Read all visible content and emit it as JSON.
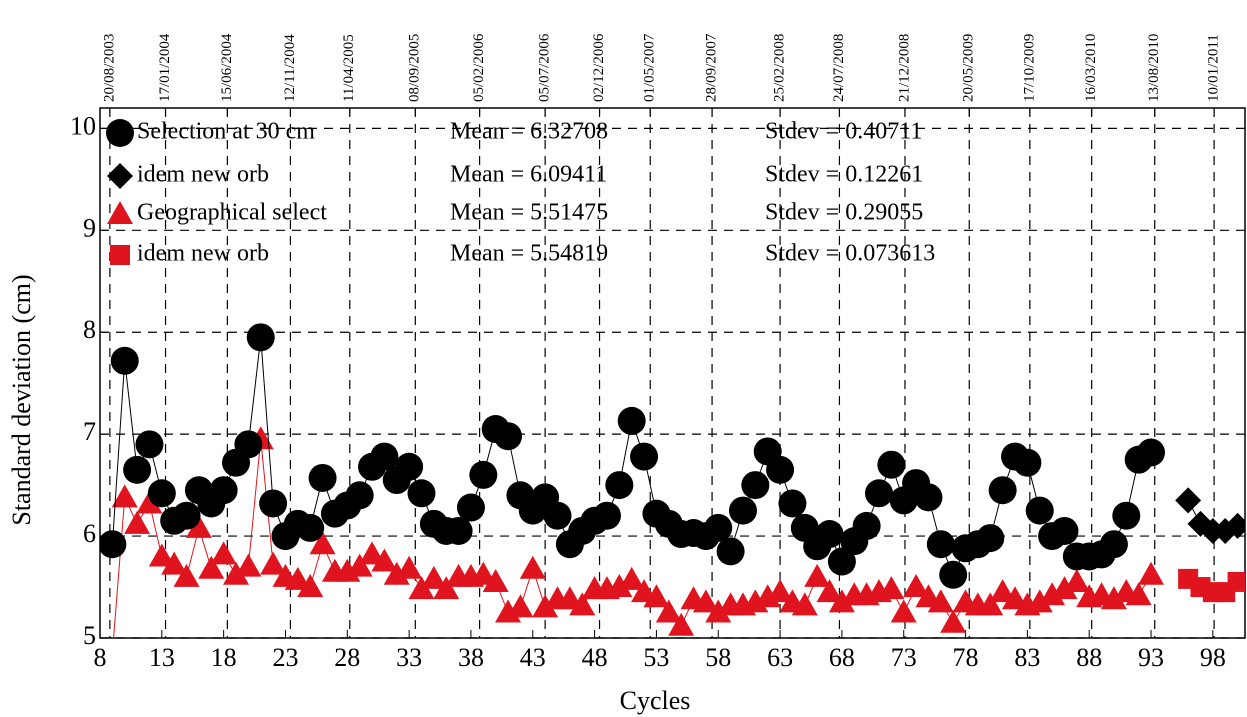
{
  "chart_data": {
    "type": "scatter",
    "xlabel": "Cycles",
    "ylabel": "Standard deviation (cm)",
    "xlim": [
      8,
      100.6
    ],
    "ylim": [
      5,
      10.2
    ],
    "xticks": [
      8,
      13,
      18,
      23,
      28,
      33,
      38,
      43,
      48,
      53,
      58,
      63,
      68,
      73,
      78,
      83,
      88,
      93,
      98
    ],
    "yticks": [
      5,
      6,
      7,
      8,
      9,
      10
    ],
    "x2ticks": [
      {
        "value": 8.8,
        "label": "20/08/2003"
      },
      {
        "value": 13.3,
        "label": "17/01/2004"
      },
      {
        "value": 18.3,
        "label": "15/06/2004"
      },
      {
        "value": 23.4,
        "label": "12/11/2004"
      },
      {
        "value": 28.2,
        "label": "11/04/2005"
      },
      {
        "value": 33.5,
        "label": "08/09/2005"
      },
      {
        "value": 38.7,
        "label": "05/02/2006"
      },
      {
        "value": 44.0,
        "label": "05/07/2006"
      },
      {
        "value": 48.4,
        "label": "02/12/2006"
      },
      {
        "value": 52.5,
        "label": "01/05/2007"
      },
      {
        "value": 57.5,
        "label": "28/09/2007"
      },
      {
        "value": 63.0,
        "label": "25/02/2008"
      },
      {
        "value": 67.8,
        "label": "24/07/2008"
      },
      {
        "value": 73.1,
        "label": "21/12/2008"
      },
      {
        "value": 78.3,
        "label": "20/05/2009"
      },
      {
        "value": 83.2,
        "label": "17/10/2009"
      },
      {
        "value": 88.2,
        "label": "16/03/2010"
      },
      {
        "value": 93.3,
        "label": "13/08/2010"
      },
      {
        "value": 98.1,
        "label": "10/01/2011"
      }
    ],
    "grid": true,
    "series": [
      {
        "name": "Selection at 30 cm",
        "color": "#000000",
        "marker": "circle",
        "stats": [
          "Mean = 6.32708",
          "Stdev = 0.40711"
        ],
        "x": [
          9,
          10,
          11,
          12,
          13,
          14,
          15,
          16,
          17,
          18,
          19,
          20,
          21,
          22,
          23,
          24,
          25,
          26,
          27,
          28,
          29,
          30,
          31,
          32,
          33,
          34,
          35,
          36,
          37,
          38,
          39,
          40,
          41,
          42,
          43,
          44,
          45,
          46,
          47,
          48,
          49,
          50,
          51,
          52,
          53,
          54,
          55,
          56,
          57,
          58,
          59,
          60,
          61,
          62,
          63,
          64,
          65,
          66,
          67,
          68,
          69,
          70,
          71,
          72,
          73,
          74,
          75,
          76,
          77,
          78,
          79,
          80,
          81,
          82,
          83,
          84,
          85,
          86,
          87,
          88,
          89,
          90,
          91,
          92,
          93
        ],
        "values": [
          5.92,
          7.72,
          6.65,
          6.9,
          6.42,
          6.15,
          6.2,
          6.45,
          6.32,
          6.45,
          6.72,
          6.9,
          7.95,
          6.32,
          6.0,
          6.12,
          6.08,
          6.57,
          6.22,
          6.3,
          6.4,
          6.68,
          6.78,
          6.55,
          6.68,
          6.42,
          6.12,
          6.05,
          6.05,
          6.28,
          6.6,
          7.05,
          6.98,
          6.4,
          6.25,
          6.38,
          6.2,
          5.92,
          6.05,
          6.15,
          6.2,
          6.5,
          7.13,
          6.78,
          6.22,
          6.12,
          6.02,
          6.03,
          6.0,
          6.08,
          5.85,
          6.25,
          6.5,
          6.83,
          6.65,
          6.32,
          6.08,
          5.9,
          6.02,
          5.75,
          5.95,
          6.1,
          6.42,
          6.7,
          6.35,
          6.52,
          6.38,
          5.92,
          5.62,
          5.88,
          5.92,
          5.98,
          6.45,
          6.78,
          6.72,
          6.25,
          6.0,
          6.05,
          5.8,
          5.8,
          5.82,
          5.92,
          6.2,
          6.75,
          6.82
        ]
      },
      {
        "name": "idem new orb",
        "color": "#000000",
        "marker": "diamond",
        "stats": [
          "Mean = 6.09411",
          "Stdev = 0.12261"
        ],
        "x": [
          96,
          97,
          98,
          99,
          100
        ],
        "values": [
          6.35,
          6.12,
          6.05,
          6.05,
          6.1
        ]
      },
      {
        "name": "Geographical select",
        "color": "#e0141e",
        "marker": "triangle",
        "stats": [
          "Mean = 5.51475",
          "Stdev = 0.29055"
        ],
        "x": [
          9,
          10,
          11,
          12,
          13,
          14,
          15,
          16,
          17,
          18,
          19,
          20,
          21,
          22,
          23,
          24,
          25,
          26,
          27,
          28,
          29,
          30,
          31,
          32,
          33,
          34,
          35,
          36,
          37,
          38,
          39,
          40,
          41,
          42,
          43,
          44,
          45,
          46,
          47,
          48,
          49,
          50,
          51,
          52,
          53,
          54,
          55,
          56,
          57,
          58,
          59,
          60,
          61,
          62,
          63,
          64,
          65,
          66,
          67,
          68,
          69,
          70,
          71,
          72,
          73,
          74,
          75,
          76,
          77,
          78,
          79,
          80,
          81,
          82,
          83,
          84,
          85,
          86,
          87,
          88,
          89,
          90,
          91,
          92,
          93
        ],
        "values": [
          4.85,
          6.38,
          6.12,
          6.32,
          5.8,
          5.72,
          5.6,
          6.08,
          5.68,
          5.82,
          5.62,
          5.7,
          6.95,
          5.72,
          5.6,
          5.57,
          5.5,
          5.92,
          5.65,
          5.65,
          5.7,
          5.82,
          5.75,
          5.62,
          5.68,
          5.48,
          5.58,
          5.48,
          5.6,
          5.6,
          5.62,
          5.55,
          5.25,
          5.3,
          5.68,
          5.3,
          5.38,
          5.38,
          5.32,
          5.48,
          5.48,
          5.5,
          5.57,
          5.45,
          5.4,
          5.25,
          5.12,
          5.38,
          5.35,
          5.25,
          5.32,
          5.32,
          5.35,
          5.4,
          5.45,
          5.35,
          5.32,
          5.6,
          5.45,
          5.35,
          5.42,
          5.42,
          5.45,
          5.48,
          5.25,
          5.5,
          5.4,
          5.35,
          5.15,
          5.35,
          5.32,
          5.32,
          5.45,
          5.38,
          5.32,
          5.35,
          5.42,
          5.48,
          5.55,
          5.4,
          5.42,
          5.38,
          5.45,
          5.42,
          5.62
        ]
      },
      {
        "name": "idem new orb",
        "color": "#e0141e",
        "marker": "square",
        "stats": [
          "Mean = 5.54819",
          "Stdev = 0.073613"
        ],
        "x": [
          96,
          97,
          98,
          99,
          100
        ],
        "values": [
          5.58,
          5.5,
          5.45,
          5.45,
          5.55
        ]
      }
    ]
  }
}
